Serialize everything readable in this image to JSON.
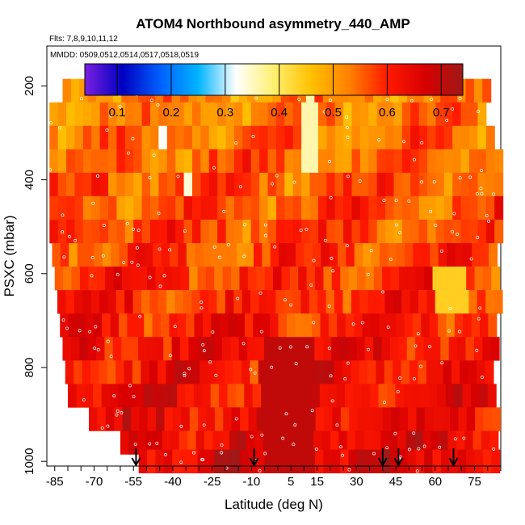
{
  "chart_data": {
    "type": "heatmap",
    "title": "ATOM4 Northbound asymmetry_440_AMP",
    "subtitle_flights": "Flts: 7,8,9,10,11,12",
    "subtitle_dates": "MMDD: 0509,0512,0514,0517,0518,0519",
    "xlabel": "Latitude (deg N)",
    "ylabel": "PSXC (mbar)",
    "xlim": [
      -88,
      85
    ],
    "ylim": [
      1010,
      115
    ],
    "x_ticks": [
      "-85",
      "-70",
      "-55",
      "-40",
      "-25",
      "-10",
      "5",
      "15",
      "30",
      "45",
      "60",
      "75"
    ],
    "y_ticks": [
      "200",
      "400",
      "600",
      "800",
      "1000"
    ],
    "colorbar": {
      "range": [
        0.04,
        0.74
      ],
      "tick_labels": [
        "0.1",
        "0.2",
        "0.3",
        "0.4",
        "0.5",
        "0.6",
        "0.7"
      ],
      "colors": [
        "#7a1fe0",
        "#0000c0",
        "#0060ff",
        "#00b4ff",
        "#ffffff",
        "#fff070",
        "#ffc000",
        "#ff8000",
        "#ff1a00",
        "#d80000",
        "#a01818"
      ]
    },
    "bands": [
      {
        "p": 210,
        "x_start": -82,
        "x_end": 80
      },
      {
        "p": 260,
        "x_start": -87,
        "x_end": 79
      },
      {
        "p": 310,
        "x_start": -87,
        "x_end": 82
      },
      {
        "p": 360,
        "x_start": -87,
        "x_end": 83
      },
      {
        "p": 410,
        "x_start": -87,
        "x_end": 83
      },
      {
        "p": 460,
        "x_start": -87,
        "x_end": 83
      },
      {
        "p": 510,
        "x_start": -87,
        "x_end": 83
      },
      {
        "p": 560,
        "x_start": -86,
        "x_end": 83
      },
      {
        "p": 610,
        "x_start": -85,
        "x_end": 83
      },
      {
        "p": 660,
        "x_start": -84,
        "x_end": 83
      },
      {
        "p": 710,
        "x_start": -83,
        "x_end": 83
      },
      {
        "p": 760,
        "x_start": -82,
        "x_end": 82
      },
      {
        "p": 810,
        "x_start": -81,
        "x_end": 82
      },
      {
        "p": 860,
        "x_start": -80,
        "x_end": 82
      },
      {
        "p": 910,
        "x_start": -72,
        "x_end": 82
      },
      {
        "p": 960,
        "x_start": -60,
        "x_end": 83
      },
      {
        "p": 1000,
        "x_start": -53,
        "x_end": 83
      }
    ],
    "profile_arrows_lat": [
      -54,
      -9,
      40,
      46,
      67
    ]
  }
}
